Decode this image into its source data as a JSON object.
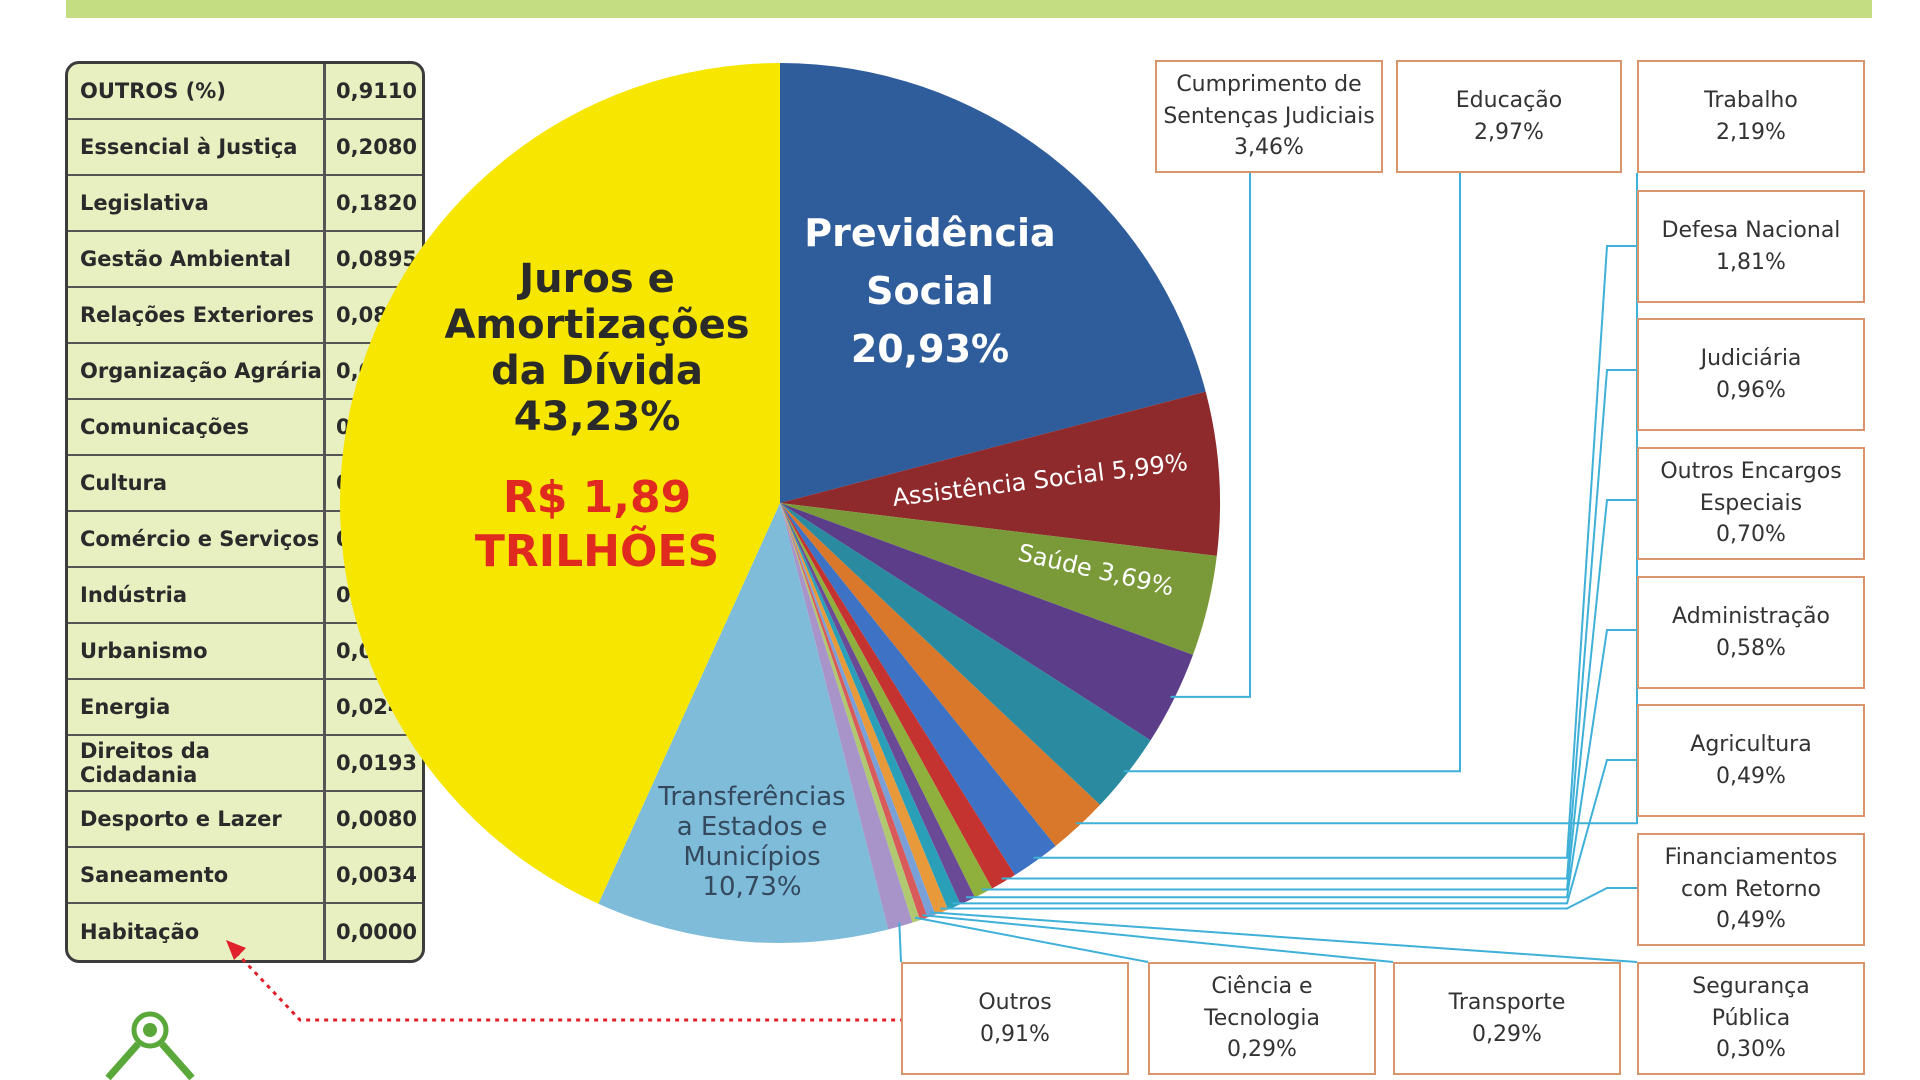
{
  "colors": {
    "banner": "#c5dd82",
    "leader": "#3fb0d8",
    "box_border": "#d9956c",
    "arrow": "#e0202a"
  },
  "table": {
    "rows": [
      {
        "name": "OUTROS (%)",
        "value": "0,9110"
      },
      {
        "name": "Essencial à Justiça",
        "value": "0,2080"
      },
      {
        "name": "Legislativa",
        "value": "0,1820"
      },
      {
        "name": "Gestão Ambiental",
        "value": "0,0895"
      },
      {
        "name": "Relações Exteriores",
        "value": "0,0887"
      },
      {
        "name": "Organização Agrária",
        "value": "0,0596"
      },
      {
        "name": "Comunicações",
        "value": "0,0564"
      },
      {
        "name": "Cultura",
        "value": "0,0524"
      },
      {
        "name": "Comércio e Serviços",
        "value": "0,0477"
      },
      {
        "name": "Indústria",
        "value": "0,0446"
      },
      {
        "name": "Urbanismo",
        "value": "0,0275"
      },
      {
        "name": "Energia",
        "value": "0,0240"
      },
      {
        "name": "Direitos da Cidadania",
        "value": "0,0193"
      },
      {
        "name": "Desporto e Lazer",
        "value": "0,0080"
      },
      {
        "name": "Saneamento",
        "value": "0,0034"
      },
      {
        "name": "Habitação",
        "value": "0,0000"
      }
    ]
  },
  "chart_data": {
    "type": "pie",
    "title": "",
    "total_label": [
      "R$ 1,89",
      "TRILHÕES"
    ],
    "slices": [
      {
        "key": "previdencia",
        "name": "Previdência Social",
        "pct": "20,93%",
        "value": 20.93,
        "color": "#2f5c9a",
        "callout": "inside"
      },
      {
        "key": "assistencia",
        "name": "Assistência Social",
        "pct": "5,99%",
        "value": 5.99,
        "color": "#8e2a2b",
        "callout": "inside"
      },
      {
        "key": "saude",
        "name": "Saúde",
        "pct": "3,69%",
        "value": 3.69,
        "color": "#7a9a3a",
        "callout": "inside"
      },
      {
        "key": "cumprimento",
        "name": "Cumprimento de Sentenças Judiciais",
        "pct": "3,46%",
        "value": 3.46,
        "color": "#5c3d8a",
        "callout": "box"
      },
      {
        "key": "educacao",
        "name": "Educação",
        "pct": "2,97%",
        "value": 2.97,
        "color": "#2a8aa0",
        "callout": "box"
      },
      {
        "key": "trabalho",
        "name": "Trabalho",
        "pct": "2,19%",
        "value": 2.19,
        "color": "#d9782a",
        "callout": "box"
      },
      {
        "key": "defesa",
        "name": "Defesa Nacional",
        "pct": "1,81%",
        "value": 1.81,
        "color": "#3e72c4",
        "callout": "box"
      },
      {
        "key": "judiciaria",
        "name": "Judiciária",
        "pct": "0,96%",
        "value": 0.96,
        "color": "#c4332f",
        "callout": "box"
      },
      {
        "key": "outros_encargos",
        "name": "Outros Encargos Especiais",
        "pct": "0,70%",
        "value": 0.7,
        "color": "#8fb03c",
        "callout": "box"
      },
      {
        "key": "administracao",
        "name": "Administração",
        "pct": "0,58%",
        "value": 0.58,
        "color": "#6a4a96",
        "callout": "box"
      },
      {
        "key": "agricultura",
        "name": "Agricultura",
        "pct": "0,49%",
        "value": 0.49,
        "color": "#2aa0b8",
        "callout": "box"
      },
      {
        "key": "financiamentos",
        "name": "Financiamentos com Retorno",
        "pct": "0,49%",
        "value": 0.49,
        "color": "#e89a3a",
        "callout": "box"
      },
      {
        "key": "seguranca",
        "name": "Segurança Pública",
        "pct": "0,30%",
        "value": 0.3,
        "color": "#7aa0d8",
        "callout": "box"
      },
      {
        "key": "transporte",
        "name": "Transporte",
        "pct": "0,29%",
        "value": 0.29,
        "color": "#d85a5a",
        "callout": "box"
      },
      {
        "key": "ciencia",
        "name": "Ciência e Tecnologia",
        "pct": "0,29%",
        "value": 0.29,
        "color": "#b0c870",
        "callout": "box"
      },
      {
        "key": "outros",
        "name": "Outros",
        "pct": "0,91%",
        "value": 0.91,
        "color": "#a894c8",
        "callout": "box"
      },
      {
        "key": "transferencias",
        "name": "Transferências a Estados e Municípios",
        "pct": "10,73%",
        "value": 10.73,
        "color": "#7fbcd9",
        "callout": "inside"
      },
      {
        "key": "juros",
        "name": "Juros e Amortizações da Dívida",
        "pct": "43,23%",
        "value": 43.23,
        "color": "#f7e600",
        "callout": "inside"
      }
    ],
    "inside_labels": {
      "previdencia": [
        "Previdência",
        "Social",
        "20,93%"
      ],
      "assistencia": [
        "Assistência Social  5,99%"
      ],
      "saude": [
        "Saúde  3,69%"
      ],
      "transferencias": [
        "Transferências",
        "a Estados e",
        "Municípios",
        "10,73%"
      ],
      "juros": [
        "Juros e",
        "Amortizações",
        "da Dívida",
        "43,23%"
      ]
    },
    "boxes": {
      "cumprimento": [
        "Cumprimento de",
        "Sentenças Judiciais",
        "3,46%"
      ],
      "educacao": [
        "Educação",
        "2,97%"
      ],
      "trabalho": [
        "Trabalho",
        "2,19%"
      ],
      "defesa": [
        "Defesa Nacional",
        "1,81%"
      ],
      "judiciaria": [
        "Judiciária",
        "0,96%"
      ],
      "outros_encargos": [
        "Outros Encargos",
        "Especiais",
        "0,70%"
      ],
      "administracao": [
        "Administração",
        "0,58%"
      ],
      "agricultura": [
        "Agricultura",
        "0,49%"
      ],
      "financiamentos": [
        "Financiamentos",
        "com Retorno",
        "0,49%"
      ],
      "seguranca": [
        "Segurança",
        "Pública",
        "0,30%"
      ],
      "transporte": [
        "Transporte",
        "0,29%"
      ],
      "ciencia": [
        "Ciência e",
        "Tecnologia",
        "0,29%"
      ],
      "outros": [
        "Outros",
        "0,91%"
      ]
    }
  }
}
